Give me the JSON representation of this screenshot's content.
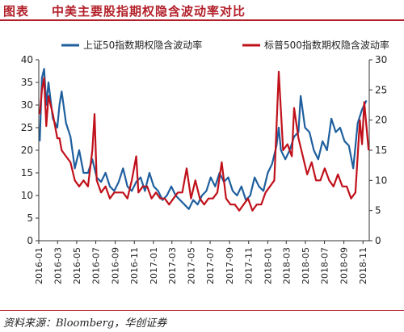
{
  "header": {
    "figure_label": "图表",
    "title": "中美主要股指期权隐含波动率对比"
  },
  "footer": {
    "source": "资料来源：Bloomberg，华创证券"
  },
  "chart_data": {
    "type": "line",
    "x_start": "2016-01",
    "x_end": "2018-11",
    "x_tick_labels": [
      "2016-01",
      "2016-03",
      "2016-05",
      "2016-07",
      "2016-09",
      "2016-11",
      "2017-01",
      "2017-03",
      "2017-05",
      "2017-07",
      "2017-09",
      "2017-11",
      "2018-01",
      "2018-03",
      "2018-05",
      "2018-07",
      "2018-09",
      "2018-11"
    ],
    "y_left": {
      "min": 0,
      "max": 40,
      "ticks": [
        0,
        5,
        10,
        15,
        20,
        25,
        30,
        35,
        40
      ]
    },
    "y_right": {
      "min": 0,
      "max": 30,
      "ticks": [
        0,
        5,
        10,
        15,
        20,
        25,
        30
      ]
    },
    "legend_position": "top",
    "grid": false,
    "series": [
      {
        "name": "上证50指数期权隐含波动率",
        "axis": "left",
        "color": "#1f5f9e",
        "points": [
          [
            "2016-01-04",
            22
          ],
          [
            "2016-01-11",
            36
          ],
          [
            "2016-01-18",
            38
          ],
          [
            "2016-01-25",
            30
          ],
          [
            "2016-02-01",
            35
          ],
          [
            "2016-02-15",
            27
          ],
          [
            "2016-02-29",
            25
          ],
          [
            "2016-03-07",
            30
          ],
          [
            "2016-03-14",
            33
          ],
          [
            "2016-03-28",
            26
          ],
          [
            "2016-04-11",
            23
          ],
          [
            "2016-04-25",
            16
          ],
          [
            "2016-05-09",
            20
          ],
          [
            "2016-05-23",
            15
          ],
          [
            "2016-06-06",
            15
          ],
          [
            "2016-06-20",
            18
          ],
          [
            "2016-07-04",
            14
          ],
          [
            "2016-07-18",
            13
          ],
          [
            "2016-08-01",
            15
          ],
          [
            "2016-08-15",
            12
          ],
          [
            "2016-08-29",
            11
          ],
          [
            "2016-09-12",
            13
          ],
          [
            "2016-09-26",
            16
          ],
          [
            "2016-10-10",
            12
          ],
          [
            "2016-10-24",
            11
          ],
          [
            "2016-11-07",
            13
          ],
          [
            "2016-11-21",
            14
          ],
          [
            "2016-12-05",
            11
          ],
          [
            "2016-12-19",
            15
          ],
          [
            "2017-01-02",
            12
          ],
          [
            "2017-01-16",
            11
          ],
          [
            "2017-01-30",
            9
          ],
          [
            "2017-02-13",
            10
          ],
          [
            "2017-02-27",
            12
          ],
          [
            "2017-03-13",
            10
          ],
          [
            "2017-03-27",
            9
          ],
          [
            "2017-04-10",
            8
          ],
          [
            "2017-04-24",
            7
          ],
          [
            "2017-05-08",
            9
          ],
          [
            "2017-05-22",
            8
          ],
          [
            "2017-06-05",
            10
          ],
          [
            "2017-06-19",
            11
          ],
          [
            "2017-07-03",
            14
          ],
          [
            "2017-07-17",
            12
          ],
          [
            "2017-07-31",
            15
          ],
          [
            "2017-08-14",
            13
          ],
          [
            "2017-08-28",
            14
          ],
          [
            "2017-09-11",
            11
          ],
          [
            "2017-09-25",
            10
          ],
          [
            "2017-10-09",
            12
          ],
          [
            "2017-10-23",
            9
          ],
          [
            "2017-11-06",
            10
          ],
          [
            "2017-11-20",
            14
          ],
          [
            "2017-12-04",
            12
          ],
          [
            "2017-12-18",
            11
          ],
          [
            "2018-01-01",
            15
          ],
          [
            "2018-01-15",
            17
          ],
          [
            "2018-01-29",
            21
          ],
          [
            "2018-02-05",
            25
          ],
          [
            "2018-02-12",
            20
          ],
          [
            "2018-02-26",
            18
          ],
          [
            "2018-03-12",
            20
          ],
          [
            "2018-03-26",
            23
          ],
          [
            "2018-04-09",
            24
          ],
          [
            "2018-04-16",
            32
          ],
          [
            "2018-04-30",
            25
          ],
          [
            "2018-05-14",
            24
          ],
          [
            "2018-05-28",
            20
          ],
          [
            "2018-06-11",
            18
          ],
          [
            "2018-06-25",
            22
          ],
          [
            "2018-07-09",
            20
          ],
          [
            "2018-07-23",
            27
          ],
          [
            "2018-08-06",
            24
          ],
          [
            "2018-08-20",
            25
          ],
          [
            "2018-09-03",
            22
          ],
          [
            "2018-09-17",
            21
          ],
          [
            "2018-10-01",
            16
          ],
          [
            "2018-10-15",
            26
          ],
          [
            "2018-10-29",
            29
          ],
          [
            "2018-11-12",
            31
          ]
        ]
      },
      {
        "name": "标普500指数期权隐含波动率",
        "axis": "right",
        "color": "#c0111b",
        "points": [
          [
            "2016-01-04",
            21
          ],
          [
            "2016-01-11",
            25
          ],
          [
            "2016-01-18",
            27
          ],
          [
            "2016-01-25",
            19
          ],
          [
            "2016-02-01",
            24
          ],
          [
            "2016-02-15",
            21
          ],
          [
            "2016-02-29",
            17
          ],
          [
            "2016-03-07",
            17
          ],
          [
            "2016-03-14",
            15
          ],
          [
            "2016-03-28",
            14
          ],
          [
            "2016-04-11",
            13
          ],
          [
            "2016-04-25",
            10
          ],
          [
            "2016-05-09",
            9
          ],
          [
            "2016-05-23",
            10
          ],
          [
            "2016-06-06",
            9
          ],
          [
            "2016-06-20",
            15
          ],
          [
            "2016-06-27",
            21
          ],
          [
            "2016-07-04",
            10
          ],
          [
            "2016-07-18",
            8
          ],
          [
            "2016-08-01",
            9
          ],
          [
            "2016-08-15",
            7
          ],
          [
            "2016-08-29",
            8
          ],
          [
            "2016-09-12",
            8
          ],
          [
            "2016-09-26",
            8
          ],
          [
            "2016-10-10",
            7
          ],
          [
            "2016-10-24",
            10
          ],
          [
            "2016-11-07",
            14
          ],
          [
            "2016-11-14",
            8
          ],
          [
            "2016-11-28",
            9
          ],
          [
            "2016-12-12",
            9
          ],
          [
            "2016-12-26",
            7
          ],
          [
            "2017-01-09",
            8
          ],
          [
            "2017-01-23",
            7
          ],
          [
            "2017-02-06",
            7
          ],
          [
            "2017-02-20",
            6
          ],
          [
            "2017-03-06",
            7
          ],
          [
            "2017-03-20",
            8
          ],
          [
            "2017-04-03",
            8
          ],
          [
            "2017-04-17",
            12
          ],
          [
            "2017-05-01",
            7
          ],
          [
            "2017-05-15",
            10
          ],
          [
            "2017-05-29",
            7
          ],
          [
            "2017-06-12",
            6
          ],
          [
            "2017-06-26",
            7
          ],
          [
            "2017-07-10",
            7
          ],
          [
            "2017-07-24",
            8
          ],
          [
            "2017-08-07",
            13
          ],
          [
            "2017-08-21",
            7
          ],
          [
            "2017-09-04",
            6
          ],
          [
            "2017-09-18",
            6
          ],
          [
            "2017-10-02",
            5
          ],
          [
            "2017-10-16",
            6
          ],
          [
            "2017-10-30",
            7
          ],
          [
            "2017-11-13",
            5
          ],
          [
            "2017-11-27",
            6
          ],
          [
            "2017-12-11",
            6
          ],
          [
            "2017-12-25",
            8
          ],
          [
            "2018-01-08",
            9
          ],
          [
            "2018-01-22",
            10
          ],
          [
            "2018-02-05",
            28
          ],
          [
            "2018-02-19",
            15
          ],
          [
            "2018-03-05",
            16
          ],
          [
            "2018-03-19",
            14
          ],
          [
            "2018-03-26",
            22
          ],
          [
            "2018-04-09",
            17
          ],
          [
            "2018-04-23",
            14
          ],
          [
            "2018-05-07",
            11
          ],
          [
            "2018-05-21",
            13
          ],
          [
            "2018-06-04",
            10
          ],
          [
            "2018-06-18",
            10
          ],
          [
            "2018-07-02",
            12
          ],
          [
            "2018-07-16",
            10
          ],
          [
            "2018-07-30",
            9
          ],
          [
            "2018-08-13",
            11
          ],
          [
            "2018-08-27",
            9
          ],
          [
            "2018-09-10",
            9
          ],
          [
            "2018-09-24",
            7
          ],
          [
            "2018-10-08",
            8
          ],
          [
            "2018-10-22",
            20
          ],
          [
            "2018-10-29",
            16
          ],
          [
            "2018-11-05",
            23
          ],
          [
            "2018-11-19",
            15
          ]
        ]
      }
    ]
  }
}
